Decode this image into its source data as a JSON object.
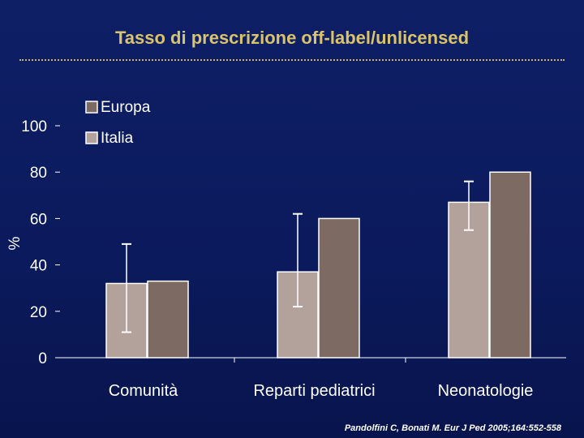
{
  "title": "Tasso di prescrizione off-label/unlicensed",
  "citation": "Pandolfini C, Bonati M. Eur J Ped 2005;164:552-558",
  "colors": {
    "background": "#0d1b5c",
    "title": "#d9c46a",
    "italia": "#b3a19c",
    "europa": "#7d6a63",
    "axis": "#ffffff",
    "error_bar": "#ffffff"
  },
  "chart_data": {
    "type": "bar",
    "title": "",
    "ylabel": "%",
    "xlabel": "",
    "ylim": [
      0,
      100
    ],
    "yticks": [
      "0",
      "20",
      "40",
      "60",
      "80",
      "100"
    ],
    "grid": false,
    "legend_placement": "top-left",
    "categories": [
      "Comunità",
      "Reparti pediatrici",
      "Neonatologie"
    ],
    "series": [
      {
        "name": "Italia",
        "values": [
          32,
          37,
          67
        ],
        "error_low": [
          11,
          22,
          55
        ],
        "error_high": [
          49,
          62,
          76
        ]
      },
      {
        "name": "Europa",
        "values": [
          33,
          60,
          80
        ]
      }
    ],
    "legend": [
      "Europa",
      "Italia"
    ]
  }
}
